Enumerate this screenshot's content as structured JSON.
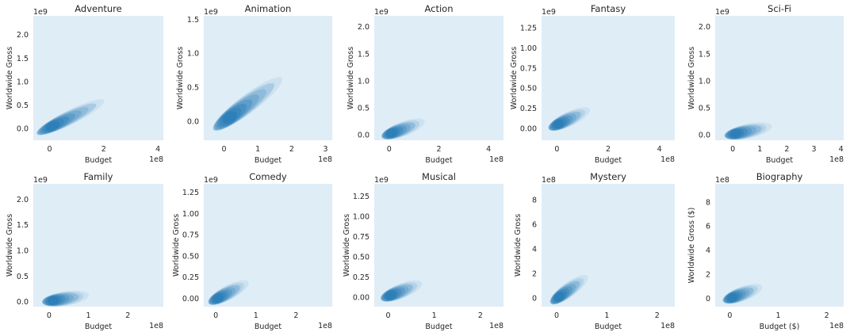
{
  "figure": {
    "background": "#ffffff",
    "panel_background": "#dfedf7",
    "kde_color": "#1f77b4"
  },
  "chart_data": [
    {
      "type": "kde",
      "title": "Adventure",
      "xlabel": "Budget",
      "ylabel": "Worldwide Gross",
      "x_offset": "1e8",
      "y_offset": "1e9",
      "xlim": [
        -0.6,
        4.2
      ],
      "ylim": [
        -0.25,
        2.4
      ],
      "x_ticks": [
        0,
        2,
        4
      ],
      "y_ticks": [
        0.0,
        0.5,
        1.0,
        1.5,
        2.0
      ],
      "x_tick_labels": [
        "0",
        "2",
        "4"
      ],
      "y_tick_labels": [
        "0.0",
        "0.5",
        "1.0",
        "1.5",
        "2.0"
      ],
      "density_center": {
        "x": 0.1,
        "y": 0.05
      },
      "x_scale": 0.55,
      "y_scale": 0.12,
      "tail": {
        "x": 1.5,
        "y": 0.45
      }
    },
    {
      "type": "kde",
      "title": "Animation",
      "xlabel": "Budget",
      "ylabel": "Worldwide Gross",
      "x_offset": "1e8",
      "y_offset": "1e9",
      "xlim": [
        -0.6,
        3.2
      ],
      "ylim": [
        -0.28,
        1.55
      ],
      "x_ticks": [
        0,
        1,
        2,
        3
      ],
      "y_ticks": [
        0.0,
        0.5,
        1.0,
        1.5
      ],
      "x_tick_labels": [
        "0",
        "1",
        "2",
        "3"
      ],
      "y_tick_labels": [
        "0.0",
        "0.5",
        "1.0",
        "1.5"
      ],
      "density_center": {
        "x": 0.15,
        "y": 0.05
      },
      "x_scale": 0.6,
      "y_scale": 0.2,
      "tail": {
        "x": 1.35,
        "y": 0.5
      }
    },
    {
      "type": "kde",
      "title": "Action",
      "xlabel": "Budget",
      "ylabel": "Worldwide Gross",
      "x_offset": "1e8",
      "y_offset": "1e9",
      "xlim": [
        -0.6,
        4.6
      ],
      "ylim": [
        -0.1,
        2.2
      ],
      "x_ticks": [
        0,
        2,
        4
      ],
      "y_ticks": [
        0.0,
        0.5,
        1.0,
        1.5,
        2.0
      ],
      "x_tick_labels": [
        "0",
        "2",
        "4"
      ],
      "y_tick_labels": [
        "0.0",
        "0.5",
        "1.0",
        "1.5",
        "2.0"
      ],
      "density_center": {
        "x": 0.1,
        "y": 0.03
      },
      "x_scale": 0.5,
      "y_scale": 0.07,
      "tail": {
        "x": 0.8,
        "y": 0.15
      }
    },
    {
      "type": "kde",
      "title": "Fantasy",
      "xlabel": "Budget",
      "ylabel": "Worldwide Gross",
      "x_offset": "1e8",
      "y_offset": "1e9",
      "xlim": [
        -0.6,
        4.6
      ],
      "ylim": [
        -0.15,
        1.4
      ],
      "x_ticks": [
        0,
        2,
        4
      ],
      "y_ticks": [
        0.0,
        0.25,
        0.5,
        0.75,
        1.0,
        1.25
      ],
      "x_tick_labels": [
        "0",
        "2",
        "4"
      ],
      "y_tick_labels": [
        "0.00",
        "0.25",
        "0.50",
        "0.75",
        "1.00",
        "1.25"
      ],
      "density_center": {
        "x": 0.05,
        "y": 0.05
      },
      "x_scale": 0.4,
      "y_scale": 0.12,
      "tail": {
        "x": 0.7,
        "y": 0.15
      }
    },
    {
      "type": "kde",
      "title": "Sci-Fi",
      "xlabel": "Budget",
      "ylabel": "Worldwide Gross",
      "x_offset": "1e8",
      "y_offset": "1e9",
      "xlim": [
        -0.65,
        4.1
      ],
      "ylim": [
        -0.1,
        2.2
      ],
      "x_ticks": [
        0,
        1,
        2,
        3,
        4
      ],
      "y_ticks": [
        0.0,
        0.5,
        1.0,
        1.5,
        2.0
      ],
      "x_tick_labels": [
        "0",
        "1",
        "2",
        "3",
        "4"
      ],
      "y_tick_labels": [
        "0.0",
        "0.5",
        "1.0",
        "1.5",
        "2.0"
      ],
      "density_center": {
        "x": 0.1,
        "y": 0.02
      },
      "x_scale": 0.5,
      "y_scale": 0.08,
      "tail": {
        "x": 0.85,
        "y": 0.1
      }
    },
    {
      "type": "kde",
      "title": "Family",
      "xlabel": "Budget",
      "ylabel": "Worldwide Gross",
      "x_offset": "1e8",
      "y_offset": "1e9",
      "xlim": [
        -0.4,
        2.9
      ],
      "ylim": [
        -0.1,
        2.3
      ],
      "x_ticks": [
        0,
        1,
        2
      ],
      "y_ticks": [
        0.0,
        0.5,
        1.0,
        1.5,
        2.0
      ],
      "x_tick_labels": [
        "0",
        "1",
        "2"
      ],
      "y_tick_labels": [
        "0.0",
        "0.5",
        "1.0",
        "1.5",
        "2.0"
      ],
      "density_center": {
        "x": 0.1,
        "y": 0.02
      },
      "x_scale": 0.4,
      "y_scale": 0.05,
      "tail": {
        "x": 0.6,
        "y": 0.08
      }
    },
    {
      "type": "kde",
      "title": "Comedy",
      "xlabel": "Budget",
      "ylabel": "Worldwide Gross",
      "x_offset": "1e8",
      "y_offset": "1e9",
      "xlim": [
        -0.3,
        2.9
      ],
      "ylim": [
        -0.1,
        1.35
      ],
      "x_ticks": [
        0,
        1,
        2
      ],
      "y_ticks": [
        0.0,
        0.25,
        0.5,
        0.75,
        1.0,
        1.25
      ],
      "x_tick_labels": [
        "0",
        "1",
        "2"
      ],
      "y_tick_labels": [
        "0.00",
        "0.25",
        "0.50",
        "0.75",
        "1.00",
        "1.25"
      ],
      "density_center": {
        "x": 0.05,
        "y": 0.0
      },
      "x_scale": 0.35,
      "y_scale": 0.07,
      "tail": {
        "x": 0.45,
        "y": 0.1
      }
    },
    {
      "type": "kde",
      "title": "Musical",
      "xlabel": "Budget",
      "ylabel": "Worldwide Gross",
      "x_offset": "1e8",
      "y_offset": "1e9",
      "xlim": [
        -0.3,
        2.5
      ],
      "ylim": [
        -0.12,
        1.4
      ],
      "x_ticks": [
        0,
        1,
        2
      ],
      "y_ticks": [
        0.0,
        0.25,
        0.5,
        0.75,
        1.0,
        1.25
      ],
      "x_tick_labels": [
        "0",
        "1",
        "2"
      ],
      "y_tick_labels": [
        "0.00",
        "0.25",
        "0.50",
        "0.75",
        "1.00",
        "1.25"
      ],
      "density_center": {
        "x": 0.05,
        "y": 0.02
      },
      "x_scale": 0.35,
      "y_scale": 0.06,
      "tail": {
        "x": 0.4,
        "y": 0.1
      }
    },
    {
      "type": "kde",
      "title": "Mystery",
      "xlabel": "Budget",
      "ylabel": "Worldwide Gross",
      "x_offset": "1e8",
      "y_offset": "1e8",
      "xlim": [
        -0.3,
        2.35
      ],
      "ylim": [
        -0.7,
        9.3
      ],
      "x_ticks": [
        0,
        1,
        2
      ],
      "y_ticks": [
        0,
        2,
        4,
        6,
        8
      ],
      "x_tick_labels": [
        "0",
        "1",
        "2"
      ],
      "y_tick_labels": [
        "0",
        "2",
        "4",
        "6",
        "8"
      ],
      "density_center": {
        "x": 0.05,
        "y": 0.1
      },
      "x_scale": 0.3,
      "y_scale": 0.4,
      "tail": {
        "x": 0.35,
        "y": 1.0
      }
    },
    {
      "type": "kde",
      "title": "Biography",
      "xlabel": "Budget ($)",
      "ylabel": "Worldwide Gross ($)",
      "x_offset": "1e8",
      "y_offset": "1e8",
      "xlim": [
        -0.3,
        2.35
      ],
      "ylim": [
        -0.7,
        9.5
      ],
      "x_ticks": [
        0,
        1,
        2
      ],
      "y_ticks": [
        0,
        2,
        4,
        6,
        8
      ],
      "x_tick_labels": [
        "0",
        "1",
        "2"
      ],
      "y_tick_labels": [
        "0",
        "2",
        "4",
        "6",
        "8"
      ],
      "density_center": {
        "x": 0.05,
        "y": 0.05
      },
      "x_scale": 0.3,
      "y_scale": 0.35,
      "tail": {
        "x": 0.35,
        "y": 0.5
      }
    }
  ]
}
